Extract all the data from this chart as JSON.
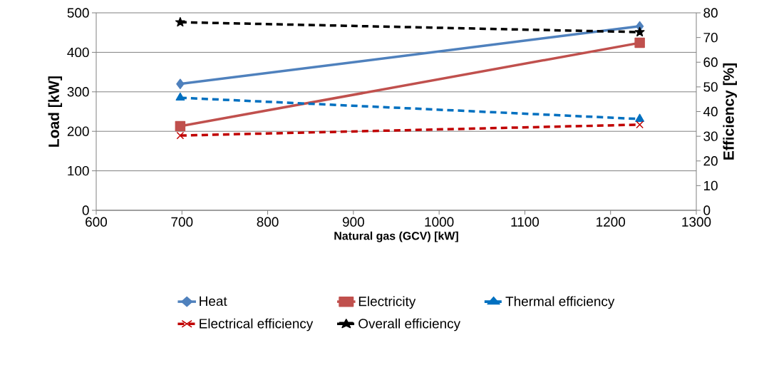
{
  "chart_data": {
    "type": "line",
    "xlabel": "Natural gas (GCV) [kW]",
    "ylabel": "Load [kW]",
    "y2label": "Efficiency [%]",
    "xlim": [
      600,
      1300
    ],
    "xticks": [
      600,
      700,
      800,
      900,
      1000,
      1100,
      1200,
      1300
    ],
    "ylim": [
      0,
      500
    ],
    "yticks": [
      0,
      100,
      200,
      300,
      400,
      500
    ],
    "y2lim": [
      0,
      80
    ],
    "y2ticks": [
      0,
      10,
      20,
      30,
      40,
      50,
      60,
      70,
      80
    ],
    "grid": "y",
    "legend": "bottom",
    "x": [
      698,
      1234
    ],
    "series": [
      {
        "name": "Heat",
        "color": "#4f81bd",
        "values": [
          320,
          466
        ],
        "marker": "diamond",
        "line_style": "solid"
      },
      {
        "name": "Electricity",
        "color": "#c0504d",
        "values": [
          213,
          424
        ],
        "marker": "square",
        "line_style": "solid"
      },
      {
        "name": "Thermal efficiency",
        "color": "#0070c0",
        "values": [
          45.6,
          37
        ],
        "marker": "triangle",
        "line_style": "dashed",
        "axis": "y2"
      },
      {
        "name": "Electrical efficiency",
        "color": "#c00000",
        "values": [
          30.3,
          34.7
        ],
        "marker": "cross",
        "line_style": "dashed",
        "axis": "y2"
      },
      {
        "name": "Overall efficiency",
        "color": "#000000",
        "values": [
          76.2,
          72.2
        ],
        "marker": "star",
        "line_style": "dashed",
        "axis": "y2"
      }
    ]
  }
}
